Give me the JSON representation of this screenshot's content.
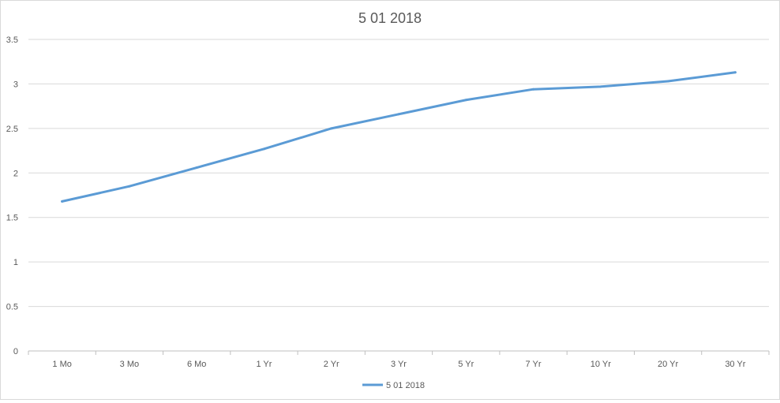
{
  "chart_data": {
    "type": "line",
    "title": "5 01 2018",
    "xlabel": "",
    "ylabel": "",
    "categories": [
      "1 Mo",
      "3 Mo",
      "6 Mo",
      "1 Yr",
      "2 Yr",
      "3 Yr",
      "5 Yr",
      "7 Yr",
      "10 Yr",
      "20 Yr",
      "30 Yr"
    ],
    "series": [
      {
        "name": "5 01 2018",
        "color": "#5b9bd5",
        "values": [
          1.68,
          1.85,
          2.06,
          2.27,
          2.5,
          2.66,
          2.82,
          2.94,
          2.97,
          3.03,
          3.13
        ]
      }
    ],
    "ylim": [
      0,
      3.5
    ],
    "yticks": [
      "0",
      "0.5",
      "1",
      "1.5",
      "2",
      "2.5",
      "3",
      "3.5"
    ],
    "grid": true,
    "legend": "bottom"
  }
}
